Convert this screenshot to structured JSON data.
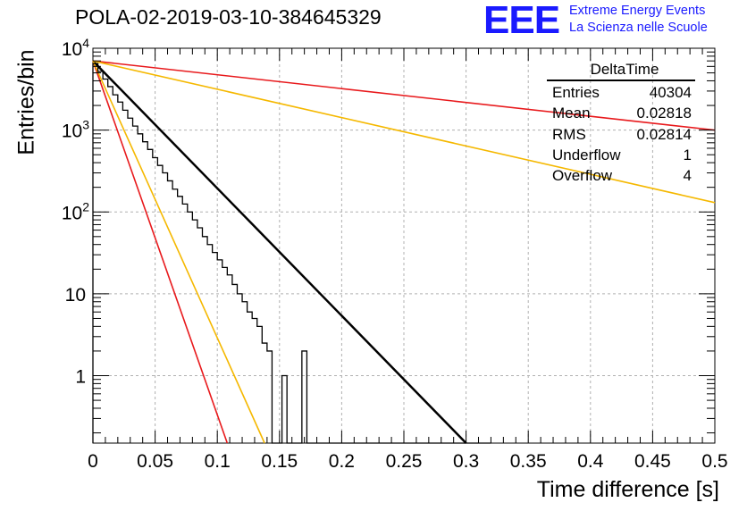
{
  "header": {
    "title": "POLA-02-2019-03-10-384645329",
    "logo_mark": "EEE",
    "logo_line1": "Extreme Energy Events",
    "logo_line2": "La Scienza nelle Scuole"
  },
  "stats_box": {
    "title": "DeltaTime",
    "rows": [
      {
        "label": "Entries",
        "value": "40304"
      },
      {
        "label": "Mean",
        "value": "0.02818"
      },
      {
        "label": "RMS",
        "value": "0.02814"
      },
      {
        "label": "Underflow",
        "value": "1"
      },
      {
        "label": "Overflow",
        "value": "4"
      }
    ]
  },
  "colors": {
    "histogram": "#000000",
    "fit": "#000000",
    "red_lines": "#e8191c",
    "orange_lines": "#f5b800",
    "grid": "#b0b0b0"
  },
  "chart_data": {
    "type": "line",
    "title": "POLA-02-2019-03-10-384645329",
    "xlabel": "Time difference [s]",
    "ylabel": "Entries/bin",
    "xlim": [
      0,
      0.5
    ],
    "ylim": [
      0.15,
      10000
    ],
    "yscale": "log",
    "grid": true,
    "x_ticks": [
      "0",
      "0.05",
      "0.1",
      "0.15",
      "0.2",
      "0.25",
      "0.3",
      "0.35",
      "0.4",
      "0.45",
      "0.5"
    ],
    "y_ticks": [
      "1",
      "10",
      "10^2",
      "10^3",
      "10^4"
    ],
    "histogram": {
      "bin_width": 0.004,
      "bin_start": 0,
      "values": [
        6500,
        5200,
        4200,
        3400,
        2700,
        2200,
        1750,
        1400,
        1120,
        900,
        720,
        580,
        460,
        370,
        300,
        240,
        190,
        155,
        125,
        100,
        80,
        64,
        50,
        40,
        32,
        26,
        21,
        17,
        13,
        10,
        8,
        6,
        5,
        4,
        2.5,
        2,
        0,
        0,
        1,
        0,
        0,
        0,
        2,
        0,
        0,
        0,
        0,
        0,
        0,
        0,
        0,
        0,
        0,
        0,
        0,
        0,
        0,
        0,
        0,
        0,
        0,
        0,
        0,
        0,
        0,
        0,
        0,
        0,
        0,
        0,
        0,
        0,
        0,
        0,
        0,
        0,
        0,
        0,
        0,
        0
      ]
    },
    "series": [
      {
        "name": "fit",
        "points": [
          [
            0,
            7000
          ],
          [
            0.3,
            0.15
          ]
        ]
      },
      {
        "points": [
          [
            0,
            7000
          ],
          [
            0.5,
            1000
          ]
        ]
      },
      {
        "points": [
          [
            0,
            7000
          ],
          [
            0.5,
            130
          ]
        ]
      },
      {
        "points": [
          [
            0,
            7000
          ],
          [
            0.108,
            0.15
          ]
        ]
      },
      {
        "points": [
          [
            0,
            7000
          ],
          [
            0.138,
            0.15
          ]
        ]
      }
    ]
  }
}
